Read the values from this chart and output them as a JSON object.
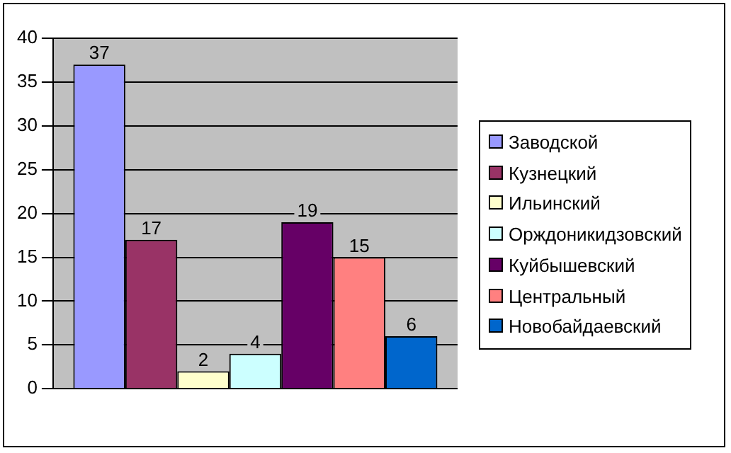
{
  "chart_data": {
    "type": "bar",
    "categories": [
      null
    ],
    "series": [
      {
        "name": "Заводской",
        "color": "#9999ff",
        "values": [
          37
        ]
      },
      {
        "name": "Кузнецкий",
        "color": "#993366",
        "values": [
          17
        ]
      },
      {
        "name": "Ильинский",
        "color": "#ffffcc",
        "values": [
          2
        ]
      },
      {
        "name": "Орждоникидзовский",
        "color": "#ccffff",
        "values": [
          4
        ]
      },
      {
        "name": "Куйбышевский",
        "color": "#660066",
        "values": [
          19
        ]
      },
      {
        "name": "Центральный",
        "color": "#ff8080",
        "values": [
          15
        ]
      },
      {
        "name": "Новобайдаевский",
        "color": "#0066cc",
        "values": [
          6
        ]
      }
    ],
    "ylim": [
      0,
      40
    ],
    "yticks": [
      0,
      5,
      10,
      15,
      20,
      25,
      30,
      35,
      40
    ],
    "grid": "y",
    "legend": "right",
    "data_labels": true
  }
}
